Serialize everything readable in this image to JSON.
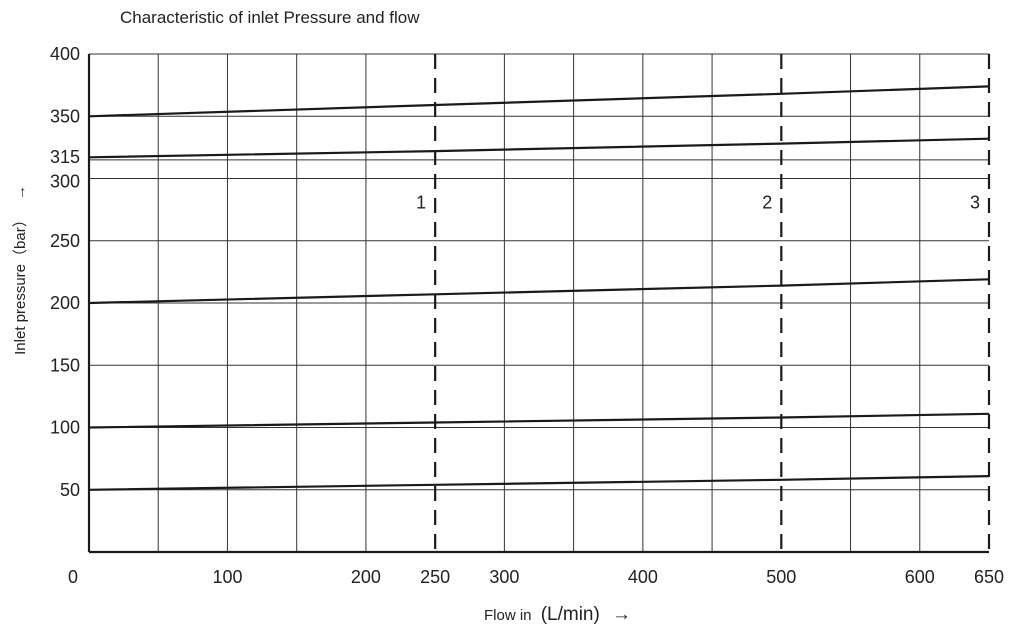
{
  "chart_data": {
    "type": "line",
    "title": "Characteristic of inlet Pressure and flow",
    "xlabel": {
      "prefix": "Flow in",
      "unit": "(L/min)",
      "arrow": "→"
    },
    "ylabel": {
      "text": "Inlet pressure（bar）",
      "arrow": "→"
    },
    "xlim": [
      0,
      650
    ],
    "ylim": [
      0,
      400
    ],
    "x_gridlines": [
      50,
      100,
      150,
      200,
      250,
      300,
      350,
      400,
      450,
      500,
      550,
      600,
      650
    ],
    "y_gridlines": [
      50,
      100,
      150,
      200,
      250,
      300,
      315,
      350,
      400
    ],
    "x_ticks": [
      {
        "value": 0,
        "label": "0"
      },
      {
        "value": 100,
        "label": "100"
      },
      {
        "value": 200,
        "label": "200"
      },
      {
        "value": 250,
        "label": "250"
      },
      {
        "value": 300,
        "label": "300"
      },
      {
        "value": 400,
        "label": "400"
      },
      {
        "value": 500,
        "label": "500"
      },
      {
        "value": 600,
        "label": "600"
      },
      {
        "value": 650,
        "label": "650"
      }
    ],
    "y_ticks": [
      {
        "value": 50,
        "label": "50"
      },
      {
        "value": 100,
        "label": "100"
      },
      {
        "value": 150,
        "label": "150"
      },
      {
        "value": 200,
        "label": "200"
      },
      {
        "value": 250,
        "label": "250"
      },
      {
        "value": 300,
        "label": "300"
      },
      {
        "value": 315,
        "label": "315"
      },
      {
        "value": 350,
        "label": "350"
      },
      {
        "value": 400,
        "label": "400"
      }
    ],
    "series": [
      {
        "x": [
          0,
          250,
          500,
          650
        ],
        "y": [
          50,
          54,
          58,
          61
        ]
      },
      {
        "x": [
          0,
          250,
          500,
          650
        ],
        "y": [
          100,
          104,
          108,
          111
        ]
      },
      {
        "x": [
          0,
          250,
          500,
          650
        ],
        "y": [
          200,
          207,
          214,
          219
        ]
      },
      {
        "x": [
          0,
          250,
          500,
          650
        ],
        "y": [
          317,
          322,
          328,
          332
        ]
      },
      {
        "x": [
          0,
          250,
          500,
          650
        ],
        "y": [
          350,
          359,
          368,
          374
        ]
      }
    ],
    "markers": [
      {
        "x": 250,
        "label": "1"
      },
      {
        "x": 500,
        "label": "2"
      },
      {
        "x": 650,
        "label": "3"
      }
    ],
    "grid": true,
    "legend": "none",
    "colors": {
      "line": "#1a1a1a",
      "grid": "#333333",
      "text": "#222222",
      "background": "#ffffff"
    }
  }
}
